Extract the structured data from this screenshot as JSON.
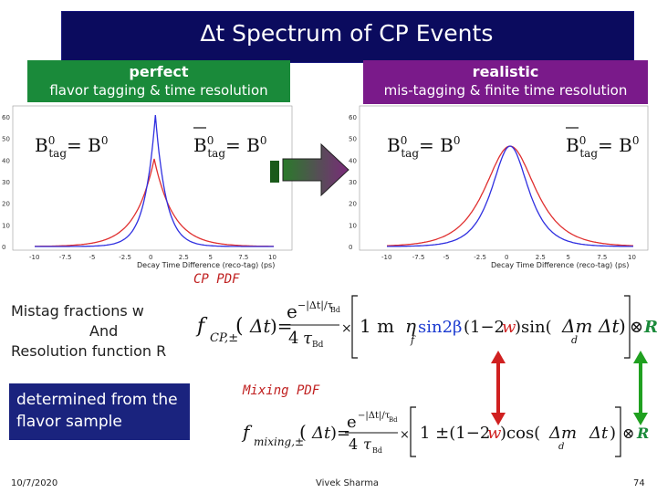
{
  "title": "∆t Spectrum of CP Events",
  "perfect": {
    "heading": "perfect",
    "sub": "flavor tagging & time resolution"
  },
  "realistic": {
    "heading": "realistic",
    "sub": "mis-tagging & finite time resolution"
  },
  "plot_labels": {
    "b_tag_b0": "B⁰tag= B⁰",
    "b_tag_bbar": "B̅⁰tag= B⁰"
  },
  "xlabel": "Decay Time Difference (reco-tag) (ps)",
  "left_plot_y_ticks": [
    "60",
    "50",
    "40",
    "30",
    "20",
    "10",
    "0"
  ],
  "right_plot_y_ticks": [
    "60",
    "50",
    "40",
    "30",
    "20",
    "10",
    "0"
  ],
  "left_plot_x_ticks": [
    "-10",
    "-7.5",
    "-5",
    "-2.5",
    "0",
    "2.5",
    "5",
    "7.5",
    "10"
  ],
  "right_plot_x_ticks": [
    "-10",
    "-7.5",
    "-5",
    "-2.5",
    "0",
    "2.5",
    "5",
    "7.5",
    "10"
  ],
  "cp_pdf_label": "CP PDF",
  "mixing_pdf_label": "Mixing PDF",
  "mistag_text": {
    "line1": "Mistag fractions w",
    "line2": "And",
    "line3": "Resolution function R"
  },
  "determined_text": "determined from the flavor sample",
  "footer": {
    "date": "10/7/2020",
    "author": "Vivek Sharma",
    "page": "74"
  },
  "colors": {
    "title_bg": "#0b0b5e",
    "perfect_bg": "#1a8a3a",
    "realistic_bg": "#7a1a8a",
    "red_curve": "#e03030",
    "blue_curve": "#3030e0",
    "arrow_red": "#d02020",
    "arrow_green": "#20a020"
  }
}
